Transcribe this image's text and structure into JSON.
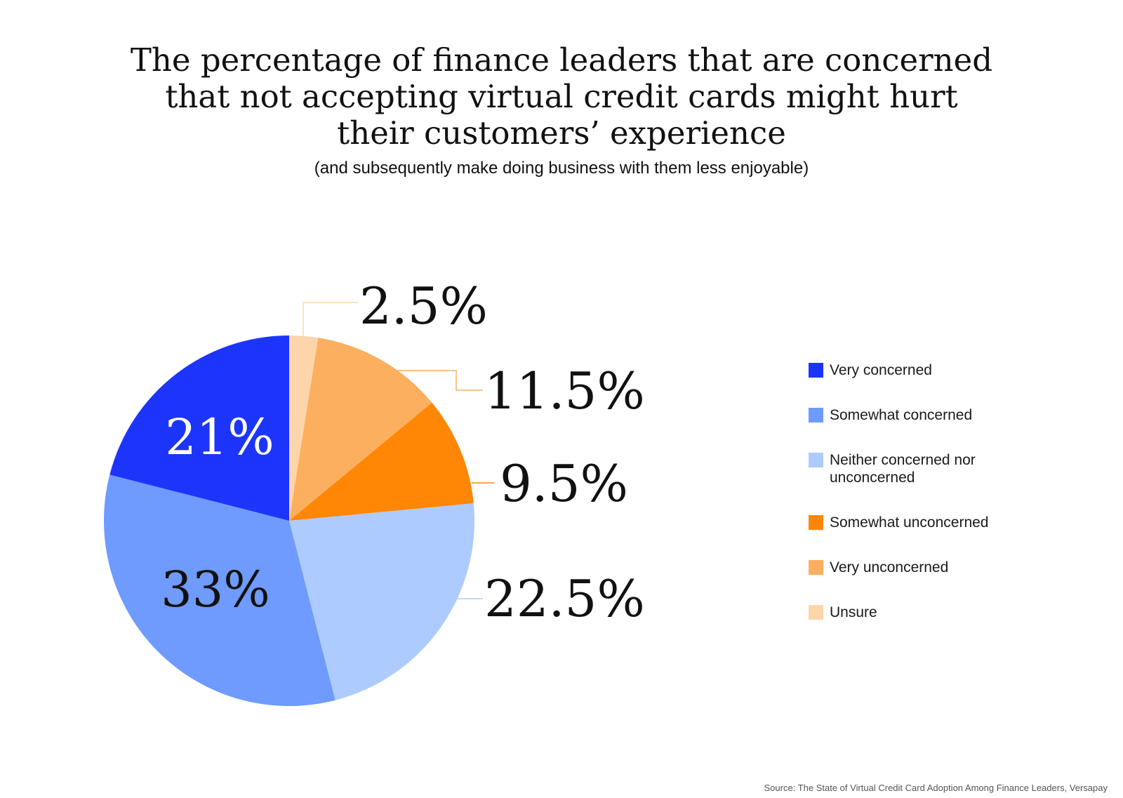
{
  "title": {
    "lines": [
      "The percentage of finance leaders that are concerned",
      "that not accepting virtual credit cards might hurt",
      "their customers’ experience"
    ],
    "subtitle": "(and subsequently make doing business with them less enjoyable)"
  },
  "chart_data": {
    "type": "pie",
    "title": "The percentage of finance leaders that are concerned that not accepting virtual credit cards might hurt their customers’ experience",
    "subtitle": "(and subsequently make doing business with them less enjoyable)",
    "slices": [
      {
        "name": "Unsure",
        "value": 2.5,
        "label": "2.5%",
        "color": "#FDD5AA"
      },
      {
        "name": "Very unconcerned",
        "value": 11.5,
        "label": "11.5%",
        "color": "#FCAF5E"
      },
      {
        "name": "Somewhat unconcerned",
        "value": 9.5,
        "label": "9.5%",
        "color": "#FF8705"
      },
      {
        "name": "Neither concerned nor unconcerned",
        "value": 22.5,
        "label": "22.5%",
        "color": "#ADCBFE"
      },
      {
        "name": "Somewhat concerned",
        "value": 33,
        "label": "33%",
        "color": "#6E9BFD"
      },
      {
        "name": "Very concerned",
        "value": 21,
        "label": "21%",
        "color": "#1D35FB"
      }
    ],
    "start": "12 o'clock",
    "direction": "clockwise",
    "legend_position": "right"
  },
  "legend": {
    "items": [
      {
        "label": "Very concerned",
        "color": "#1D35FB"
      },
      {
        "label": "Somewhat concerned",
        "color": "#6E9BFD"
      },
      {
        "label": "Neither concerned nor unconcerned",
        "color": "#ADCBFE"
      },
      {
        "label": "Somewhat unconcerned",
        "color": "#FF8705"
      },
      {
        "label": "Very unconcerned",
        "color": "#FCAF5E"
      },
      {
        "label": "Unsure",
        "color": "#FDD5AA"
      }
    ]
  },
  "source": "Source: The State of Virtual Credit Card Adoption Among Finance Leaders, Versapay"
}
